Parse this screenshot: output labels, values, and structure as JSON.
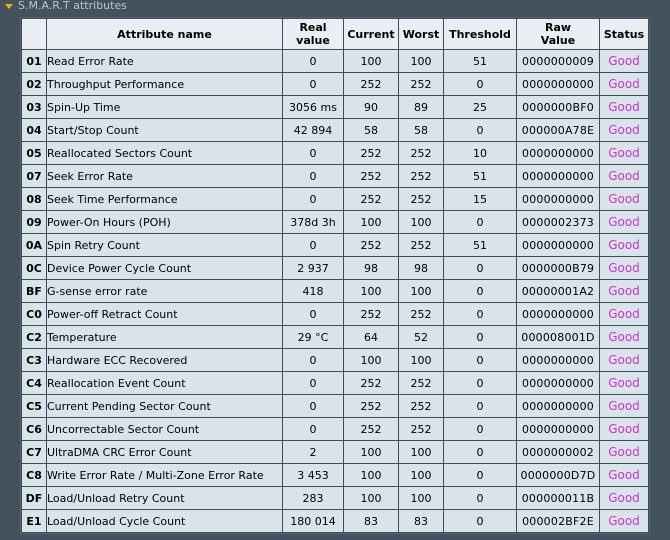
{
  "section": {
    "title": "S.M.A.R.T attributes"
  },
  "table": {
    "headers": {
      "id": "",
      "name": "Attribute name",
      "real_line1": "Real",
      "real_line2": "value",
      "current": "Current",
      "worst": "Worst",
      "threshold": "Threshold",
      "raw_line1": "Raw",
      "raw_line2": "Value",
      "status": "Status"
    },
    "rows": [
      {
        "id": "01",
        "name": "Read Error Rate",
        "real": "0",
        "current": "100",
        "worst": "100",
        "threshold": "51",
        "raw": "0000000009",
        "status": "Good"
      },
      {
        "id": "02",
        "name": "Throughput Performance",
        "real": "0",
        "current": "252",
        "worst": "252",
        "threshold": "0",
        "raw": "0000000000",
        "status": "Good"
      },
      {
        "id": "03",
        "name": "Spin-Up Time",
        "real": "3056 ms",
        "current": "90",
        "worst": "89",
        "threshold": "25",
        "raw": "0000000BF0",
        "status": "Good"
      },
      {
        "id": "04",
        "name": "Start/Stop Count",
        "real": "42 894",
        "current": "58",
        "worst": "58",
        "threshold": "0",
        "raw": "000000A78E",
        "status": "Good"
      },
      {
        "id": "05",
        "name": "Reallocated Sectors Count",
        "real": "0",
        "current": "252",
        "worst": "252",
        "threshold": "10",
        "raw": "0000000000",
        "status": "Good"
      },
      {
        "id": "07",
        "name": "Seek Error Rate",
        "real": "0",
        "current": "252",
        "worst": "252",
        "threshold": "51",
        "raw": "0000000000",
        "status": "Good"
      },
      {
        "id": "08",
        "name": "Seek Time Performance",
        "real": "0",
        "current": "252",
        "worst": "252",
        "threshold": "15",
        "raw": "0000000000",
        "status": "Good"
      },
      {
        "id": "09",
        "name": "Power-On Hours (POH)",
        "real": "378d 3h",
        "current": "100",
        "worst": "100",
        "threshold": "0",
        "raw": "0000002373",
        "status": "Good"
      },
      {
        "id": "0A",
        "name": "Spin Retry Count",
        "real": "0",
        "current": "252",
        "worst": "252",
        "threshold": "51",
        "raw": "0000000000",
        "status": "Good"
      },
      {
        "id": "0C",
        "name": "Device Power Cycle Count",
        "real": "2 937",
        "current": "98",
        "worst": "98",
        "threshold": "0",
        "raw": "0000000B79",
        "status": "Good"
      },
      {
        "id": "BF",
        "name": "G-sense error rate",
        "real": "418",
        "current": "100",
        "worst": "100",
        "threshold": "0",
        "raw": "00000001A2",
        "status": "Good"
      },
      {
        "id": "C0",
        "name": "Power-off Retract Count",
        "real": "0",
        "current": "252",
        "worst": "252",
        "threshold": "0",
        "raw": "0000000000",
        "status": "Good"
      },
      {
        "id": "C2",
        "name": "Temperature",
        "real": "29 °C",
        "current": "64",
        "worst": "52",
        "threshold": "0",
        "raw": "000008001D",
        "status": "Good"
      },
      {
        "id": "C3",
        "name": "Hardware ECC Recovered",
        "real": "0",
        "current": "100",
        "worst": "100",
        "threshold": "0",
        "raw": "0000000000",
        "status": "Good"
      },
      {
        "id": "C4",
        "name": "Reallocation Event Count",
        "real": "0",
        "current": "252",
        "worst": "252",
        "threshold": "0",
        "raw": "0000000000",
        "status": "Good"
      },
      {
        "id": "C5",
        "name": "Current Pending Sector Count",
        "real": "0",
        "current": "252",
        "worst": "252",
        "threshold": "0",
        "raw": "0000000000",
        "status": "Good"
      },
      {
        "id": "C6",
        "name": "Uncorrectable Sector Count",
        "real": "0",
        "current": "252",
        "worst": "252",
        "threshold": "0",
        "raw": "0000000000",
        "status": "Good"
      },
      {
        "id": "C7",
        "name": "UltraDMA CRC Error Count",
        "real": "2",
        "current": "100",
        "worst": "100",
        "threshold": "0",
        "raw": "0000000002",
        "status": "Good"
      },
      {
        "id": "C8",
        "name": "Write Error Rate / Multi-Zone Error Rate",
        "real": "3 453",
        "current": "100",
        "worst": "100",
        "threshold": "0",
        "raw": "0000000D7D",
        "status": "Good"
      },
      {
        "id": "DF",
        "name": "Load/Unload Retry Count",
        "real": "283",
        "current": "100",
        "worst": "100",
        "threshold": "0",
        "raw": "000000011B",
        "status": "Good"
      },
      {
        "id": "E1",
        "name": "Load/Unload Cycle Count",
        "real": "180 014",
        "current": "83",
        "worst": "83",
        "threshold": "0",
        "raw": "000002BF2E",
        "status": "Good"
      }
    ]
  },
  "colors": {
    "background": "#44515e",
    "cell": "#d9e4ea",
    "status_good": "#cc33cc",
    "header_arrow": "#f0b400"
  }
}
